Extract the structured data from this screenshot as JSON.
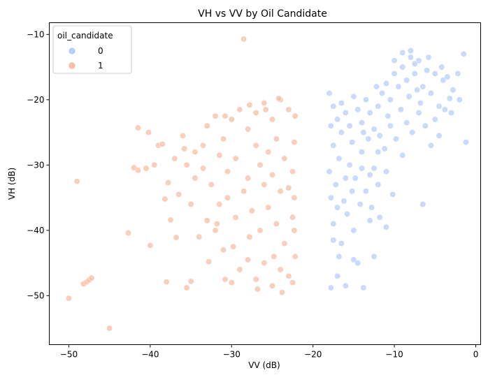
{
  "chart_data": {
    "type": "scatter",
    "title": "VH vs VV by Oil Candidate",
    "xlabel": "VV (dB)",
    "ylabel": "VH (dB)",
    "xlim": [
      -52.4,
      0.6
    ],
    "ylim": [
      -57.5,
      -8.2
    ],
    "xticks": [
      -50,
      -40,
      -30,
      -20,
      -10,
      0
    ],
    "yticks": [
      -50,
      -40,
      -30,
      -20,
      -10
    ],
    "xtick_labels": [
      "−50",
      "−40",
      "−30",
      "−20",
      "−10",
      "0"
    ],
    "ytick_labels": [
      "−50",
      "−40",
      "−30",
      "−20",
      "−10"
    ],
    "grid": false,
    "legend": {
      "title": "oil_candidate",
      "placement": "top-left",
      "entries": [
        "0",
        "1"
      ]
    },
    "colors": {
      "series_0": "#b8cff8",
      "series_1": "#f6bfa6"
    },
    "series": [
      {
        "name": "0",
        "points": [
          [
            -18,
            -19
          ],
          [
            -17.5,
            -21
          ],
          [
            -17,
            -23
          ],
          [
            -16.5,
            -20.5
          ],
          [
            -16,
            -22
          ],
          [
            -15.5,
            -24
          ],
          [
            -15,
            -19.5
          ],
          [
            -14.5,
            -21.5
          ],
          [
            -14,
            -23.5
          ],
          [
            -13.5,
            -20
          ],
          [
            -13,
            -22
          ],
          [
            -12.5,
            -24.5
          ],
          [
            -12,
            -21
          ],
          [
            -11.5,
            -19
          ],
          [
            -11,
            -17.5
          ],
          [
            -10.5,
            -20
          ],
          [
            -10,
            -16
          ],
          [
            -9.5,
            -18
          ],
          [
            -9,
            -15
          ],
          [
            -8.5,
            -17
          ],
          [
            -8,
            -13.5
          ],
          [
            -7.5,
            -16
          ],
          [
            -7,
            -14
          ],
          [
            -6.5,
            -18
          ],
          [
            -6,
            -15.5
          ],
          [
            -5.5,
            -19
          ],
          [
            -5,
            -16
          ],
          [
            -4.5,
            -21
          ],
          [
            -4,
            -17
          ],
          [
            -3,
            -22
          ],
          [
            -2,
            -20
          ],
          [
            -1.5,
            -13
          ],
          [
            -1.2,
            -26.5
          ],
          [
            -3.5,
            -16.5
          ],
          [
            -8,
            -12.5
          ],
          [
            -9,
            -12.8
          ],
          [
            -6.5,
            -36
          ],
          [
            -10.2,
            -34.5
          ],
          [
            -11,
            -39.5
          ],
          [
            -13,
            -38.5
          ],
          [
            -15,
            -44.5
          ],
          [
            -14.5,
            -45
          ],
          [
            -17,
            -47
          ],
          [
            -16,
            -48.5
          ],
          [
            -17.8,
            -48.8
          ],
          [
            -13.8,
            -48.8
          ],
          [
            -12.5,
            -44
          ],
          [
            -16.5,
            -42
          ],
          [
            -17.5,
            -39
          ],
          [
            -17.8,
            -35
          ],
          [
            -18,
            -31
          ],
          [
            -17.5,
            -27
          ],
          [
            -16.8,
            -29
          ],
          [
            -15.5,
            -30
          ],
          [
            -14.8,
            -32
          ],
          [
            -14,
            -28
          ],
          [
            -13.2,
            -26
          ],
          [
            -12.5,
            -30.5
          ],
          [
            -12,
            -33
          ],
          [
            -11.2,
            -27.5
          ],
          [
            -10.5,
            -24
          ],
          [
            -9.8,
            -26
          ],
          [
            -9,
            -28.5
          ],
          [
            -8.5,
            -23.5
          ],
          [
            -7.8,
            -25
          ],
          [
            -7,
            -22
          ],
          [
            -6.2,
            -24
          ],
          [
            -5.5,
            -27
          ],
          [
            -5,
            -23
          ],
          [
            -4.5,
            -25.5
          ],
          [
            -3.8,
            -21.5
          ],
          [
            -17.2,
            -33
          ],
          [
            -16.2,
            -35.5
          ],
          [
            -15.8,
            -37.5
          ],
          [
            -14.2,
            -36
          ],
          [
            -13.5,
            -34
          ],
          [
            -12.8,
            -36.5
          ],
          [
            -11.8,
            -38
          ],
          [
            -15,
            -40
          ],
          [
            -16.8,
            -44
          ],
          [
            -17.5,
            -41.5
          ],
          [
            -9.2,
            -21.5
          ],
          [
            -8.2,
            -19.5
          ],
          [
            -7.2,
            -18.5
          ],
          [
            -6.8,
            -20.5
          ],
          [
            -10.8,
            -22.5
          ],
          [
            -11.8,
            -25.5
          ],
          [
            -13.8,
            -25
          ],
          [
            -15.2,
            -26.5
          ],
          [
            -16.5,
            -25
          ],
          [
            -17.8,
            -24
          ],
          [
            -12.2,
            -18
          ],
          [
            -10,
            -14
          ],
          [
            -7.5,
            -14.5
          ],
          [
            -5.8,
            -13.5
          ],
          [
            -4.2,
            -15
          ],
          [
            -2.8,
            -18.5
          ],
          [
            -2.2,
            -16
          ],
          [
            -3.2,
            -19.8
          ],
          [
            -14,
            -30.5
          ],
          [
            -13,
            -31.5
          ],
          [
            -16,
            -32
          ],
          [
            -15.2,
            -34
          ],
          [
            -17,
            -36.5
          ],
          [
            -12,
            -28
          ],
          [
            -11,
            -31
          ]
        ]
      },
      {
        "name": "1",
        "points": [
          [
            -28.5,
            -10.7
          ],
          [
            -45,
            -55
          ],
          [
            -50,
            -50.4
          ],
          [
            -48.2,
            -48.2
          ],
          [
            -47.8,
            -47.9
          ],
          [
            -47.5,
            -47.6
          ],
          [
            -47.2,
            -47.3
          ],
          [
            -42.7,
            -40.4
          ],
          [
            -41.5,
            -30.8
          ],
          [
            -42,
            -30.4
          ],
          [
            -49,
            -32.5
          ],
          [
            -40,
            -42.3
          ],
          [
            -38,
            -47.9
          ],
          [
            -35.5,
            -48.8
          ],
          [
            -35,
            -47.8
          ],
          [
            -36.8,
            -41.1
          ],
          [
            -37.5,
            -38.4
          ],
          [
            -38.2,
            -35.2
          ],
          [
            -37.8,
            -32.7
          ],
          [
            -39,
            -27
          ],
          [
            -40.2,
            -25
          ],
          [
            -41.5,
            -24.3
          ],
          [
            -36,
            -25.5
          ],
          [
            -34.5,
            -28
          ],
          [
            -33.5,
            -30.5
          ],
          [
            -33,
            -24
          ],
          [
            -32,
            -22.5
          ],
          [
            -31,
            -26
          ],
          [
            -30,
            -23
          ],
          [
            -29,
            -21.5
          ],
          [
            -28,
            -24.5
          ],
          [
            -27,
            -22
          ],
          [
            -26,
            -20.5
          ],
          [
            -25,
            -23
          ],
          [
            -24,
            -20
          ],
          [
            -23,
            -21.5
          ],
          [
            -22.2,
            -22.5
          ],
          [
            -32.5,
            -33
          ],
          [
            -31.5,
            -36
          ],
          [
            -30.5,
            -35
          ],
          [
            -29.5,
            -38
          ],
          [
            -28.5,
            -34
          ],
          [
            -27.5,
            -37
          ],
          [
            -26.5,
            -40
          ],
          [
            -25.5,
            -36.5
          ],
          [
            -24.5,
            -39
          ],
          [
            -23.5,
            -42
          ],
          [
            -22.5,
            -38
          ],
          [
            -22.2,
            -44
          ],
          [
            -23,
            -47
          ],
          [
            -24,
            -46
          ],
          [
            -25,
            -48.5
          ],
          [
            -26,
            -45
          ],
          [
            -27,
            -47.5
          ],
          [
            -28,
            -44.5
          ],
          [
            -29,
            -46
          ],
          [
            -30,
            -48
          ],
          [
            -31,
            -43
          ],
          [
            -32,
            -40
          ],
          [
            -33,
            -38.5
          ],
          [
            -34,
            -41
          ],
          [
            -35,
            -36
          ],
          [
            -26.5,
            -30
          ],
          [
            -25.5,
            -28
          ],
          [
            -24.5,
            -26
          ],
          [
            -23.5,
            -29
          ],
          [
            -22.5,
            -31
          ],
          [
            -29.5,
            -29
          ],
          [
            -30.5,
            -31
          ],
          [
            -31.5,
            -28.5
          ],
          [
            -28,
            -32
          ],
          [
            -27,
            -27
          ],
          [
            -26,
            -33
          ],
          [
            -25,
            -31.5
          ],
          [
            -24,
            -34
          ],
          [
            -23,
            -33.5
          ],
          [
            -22.3,
            -26.5
          ],
          [
            -22.3,
            -35
          ],
          [
            -22.3,
            -40
          ],
          [
            -33.5,
            -27
          ],
          [
            -34.5,
            -32
          ],
          [
            -35.5,
            -30
          ],
          [
            -36.5,
            -34.5
          ],
          [
            -37,
            -29
          ],
          [
            -32.8,
            -44.8
          ],
          [
            -30.8,
            -47.5
          ],
          [
            -26.8,
            -49
          ],
          [
            -23.8,
            -49.5
          ],
          [
            -22.5,
            -48
          ],
          [
            -24.8,
            -44
          ],
          [
            -27.8,
            -41
          ],
          [
            -29.8,
            -42.5
          ],
          [
            -31.8,
            -39
          ],
          [
            -25.8,
            -21.5
          ],
          [
            -27.8,
            -20.8
          ],
          [
            -24.2,
            -19.8
          ],
          [
            -30.8,
            -22.5
          ],
          [
            -35.8,
            -27.5
          ],
          [
            -38.5,
            -26.8
          ],
          [
            -39.5,
            -30
          ],
          [
            -40.5,
            -30.5
          ]
        ]
      }
    ]
  }
}
